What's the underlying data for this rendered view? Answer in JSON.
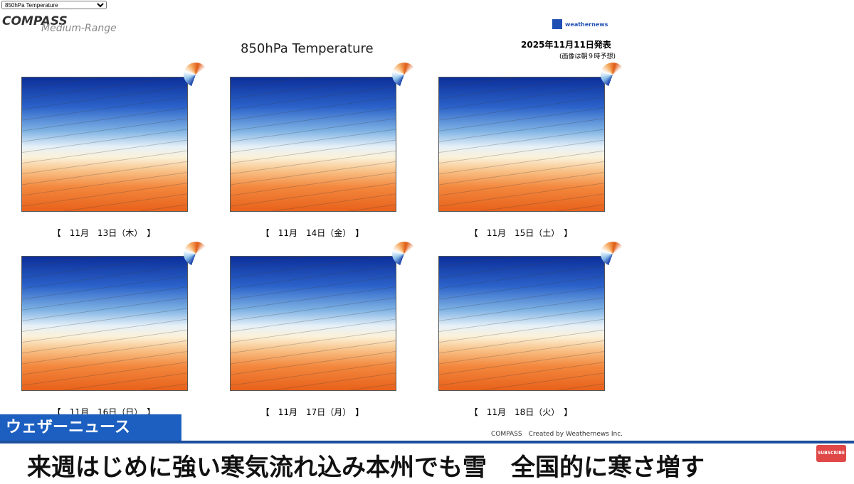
{
  "selector": {
    "option": "850hPa Temperature"
  },
  "header": {
    "logo": "COMPASS",
    "subtitle": "Medium-Range",
    "title": "850hPa Temperature",
    "brand": "weathernews",
    "issued": "2025年11月11日発表",
    "note": "(画像は朝９時予想)"
  },
  "maps": [
    {
      "label": "【　11月　13日（木）　】"
    },
    {
      "label": "【　11月　14日（金）　】"
    },
    {
      "label": "【　11月　15日（土）　】"
    },
    {
      "label": "【　11月　16日（日）　】"
    },
    {
      "label": "【　11月　17日（月）　】"
    },
    {
      "label": "【　11月　18日（火）　】"
    }
  ],
  "footer": {
    "credit": "COMPASS　Created by Weathernews Inc."
  },
  "news": {
    "channel": "ウェザーニュース",
    "headline": "来週はじめに強い寒気流れ込み本州でも雪　全国的に寒さ増す",
    "subscribe": "SUBSCRIBE"
  }
}
